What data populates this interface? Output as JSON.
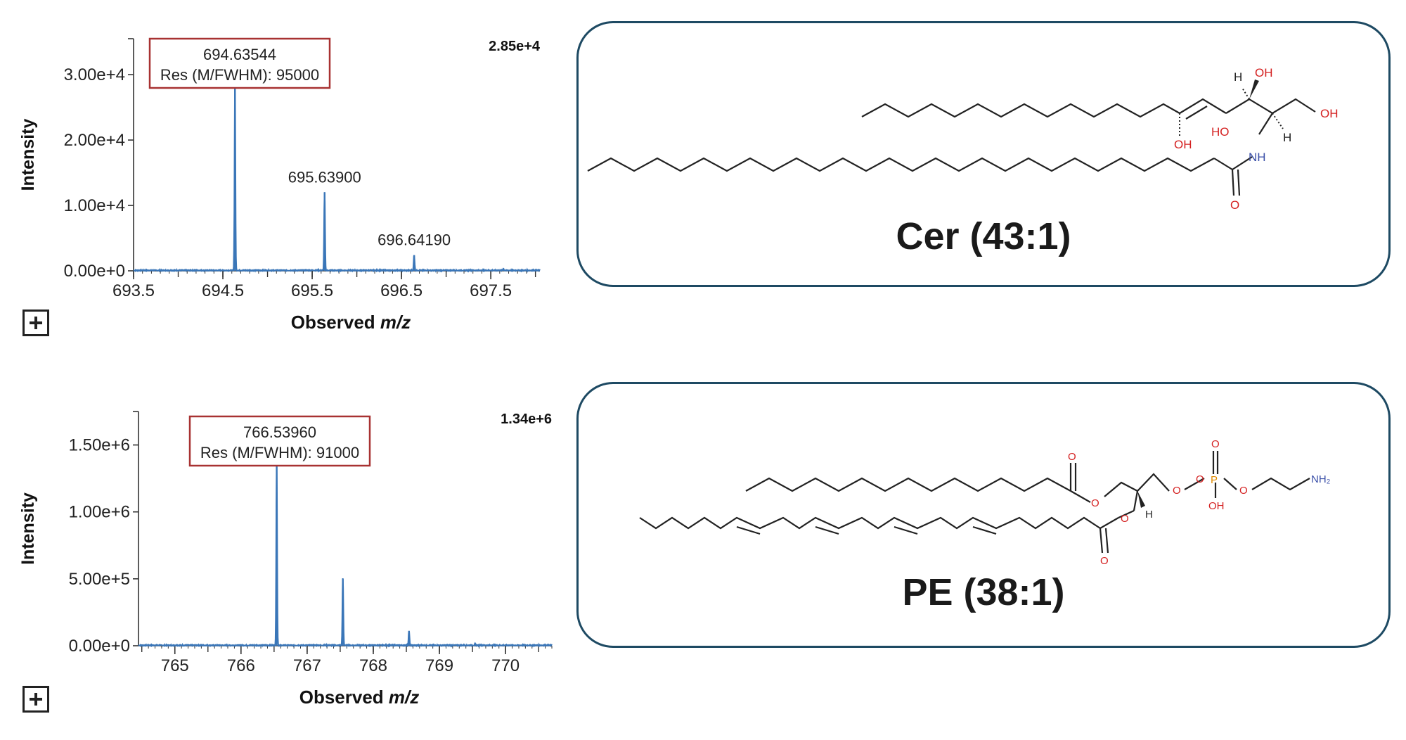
{
  "chart_data": [
    {
      "type": "line",
      "title": "",
      "xlabel": "Observed",
      "xlabel_italic": "m/z",
      "ylabel": "Intensity",
      "xlim": [
        693.5,
        698.05
      ],
      "ylim": [
        0,
        35500
      ],
      "x_ticks": [
        693.5,
        694.5,
        695.5,
        696.5,
        697.5
      ],
      "x_tick_labels": [
        "693.5",
        "694.5",
        "695.5",
        "696.5",
        "697.5"
      ],
      "y_ticks": [
        0,
        10000,
        20000,
        30000
      ],
      "y_tick_labels": [
        "0.00e+0",
        "1.00e+4",
        "2.00e+4",
        "3.00e+4"
      ],
      "max_intensity_label": "2.85e+4",
      "line_color": "#3a76b8",
      "peaks": [
        {
          "x": 694.63544,
          "y": 28500,
          "label": "694.63544"
        },
        {
          "x": 695.639,
          "y": 12000,
          "label": "695.63900"
        },
        {
          "x": 696.6419,
          "y": 2400,
          "label": "696.64190"
        },
        {
          "x": 697.64,
          "y": 300,
          "label": ""
        }
      ],
      "annotation": {
        "mz": "694.63544",
        "resolution": "Res (M/FWHM): 95000",
        "border_color": "#a83232"
      }
    },
    {
      "type": "line",
      "title": "",
      "xlabel": "Observed",
      "xlabel_italic": "m/z",
      "ylabel": "Intensity",
      "xlim": [
        764.45,
        770.7
      ],
      "ylim": [
        0,
        1750000
      ],
      "x_ticks": [
        765,
        766,
        767,
        768,
        769,
        770
      ],
      "x_tick_labels": [
        "765",
        "766",
        "767",
        "768",
        "769",
        "770"
      ],
      "y_ticks": [
        0,
        500000,
        1000000,
        1500000
      ],
      "y_tick_labels": [
        "0.00e+0",
        "5.00e+5",
        "1.00e+6",
        "1.50e+6"
      ],
      "max_intensity_label": "1.34e+6",
      "line_color": "#3a76b8",
      "peaks": [
        {
          "x": 766.5396,
          "y": 1340000,
          "label": ""
        },
        {
          "x": 767.54,
          "y": 500000,
          "label": ""
        },
        {
          "x": 768.54,
          "y": 110000,
          "label": ""
        },
        {
          "x": 769.54,
          "y": 12000,
          "label": ""
        }
      ],
      "annotation": {
        "mz": "766.53960",
        "resolution": "Res (M/FWHM): 91000",
        "border_color": "#a83232"
      }
    }
  ],
  "structures": [
    {
      "name": "Cer (43:1)",
      "atom_labels": {
        "oh1": "OH",
        "h1": "H",
        "oh2": "OH",
        "oh3": "OH",
        "h2": "H",
        "ho": "HO",
        "nh": "NH",
        "o": "O"
      }
    },
    {
      "name": "PE (38:1)",
      "atom_labels": {
        "o1": "O",
        "o2": "O",
        "o3": "O",
        "o4": "O",
        "o5": "O",
        "p": "P",
        "o6": "O",
        "oh": "OH",
        "o7": "O",
        "nh2": "NH₂",
        "h": "H",
        "o8": "O"
      }
    }
  ],
  "colors": {
    "card_border": "#1e4a63",
    "oxygen": "#d42020",
    "nitrogen": "#3a4fa8",
    "phosphorus": "#e08a00",
    "bond": "#222222"
  }
}
